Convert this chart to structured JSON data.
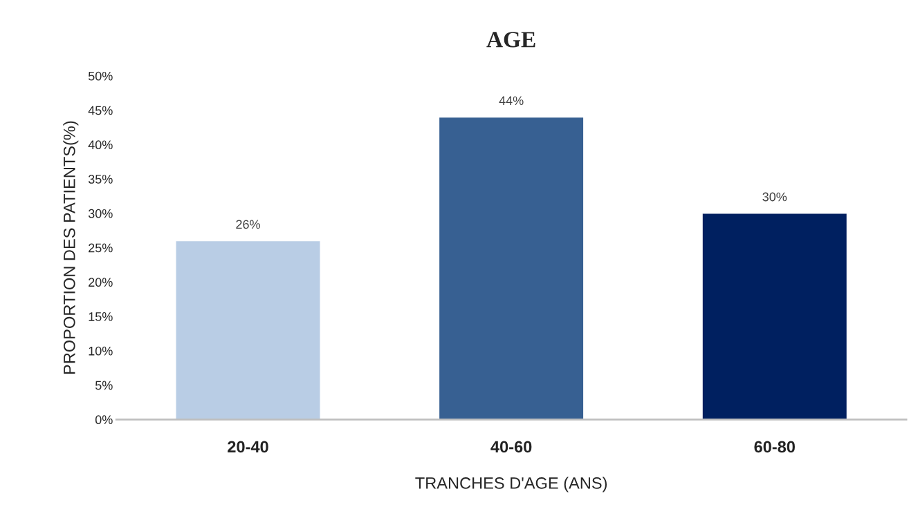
{
  "chart_data": {
    "type": "bar",
    "title": "AGE",
    "xlabel": "TRANCHES D'AGE (ANS)",
    "ylabel": "PROPORTION DES PATIENTS(%)",
    "categories": [
      "20-40",
      "40-60",
      "60-80"
    ],
    "values": [
      26,
      44,
      30
    ],
    "colors": [
      "#b9cde5",
      "#376092",
      "#002060"
    ],
    "value_labels": [
      "26%",
      "44%",
      "30%"
    ],
    "ylim": [
      0,
      50
    ],
    "yticks": [
      {
        "value": 0,
        "label": "0%"
      },
      {
        "value": 5,
        "label": "5%"
      },
      {
        "value": 10,
        "label": "10%"
      },
      {
        "value": 15,
        "label": "15%"
      },
      {
        "value": 20,
        "label": "20%"
      },
      {
        "value": 25,
        "label": "25%"
      },
      {
        "value": 30,
        "label": "30%"
      },
      {
        "value": 35,
        "label": "35%"
      },
      {
        "value": 40,
        "label": "40%"
      },
      {
        "value": 45,
        "label": "45%"
      },
      {
        "value": 50,
        "label": "50%"
      }
    ],
    "grid": false,
    "legend": false
  }
}
